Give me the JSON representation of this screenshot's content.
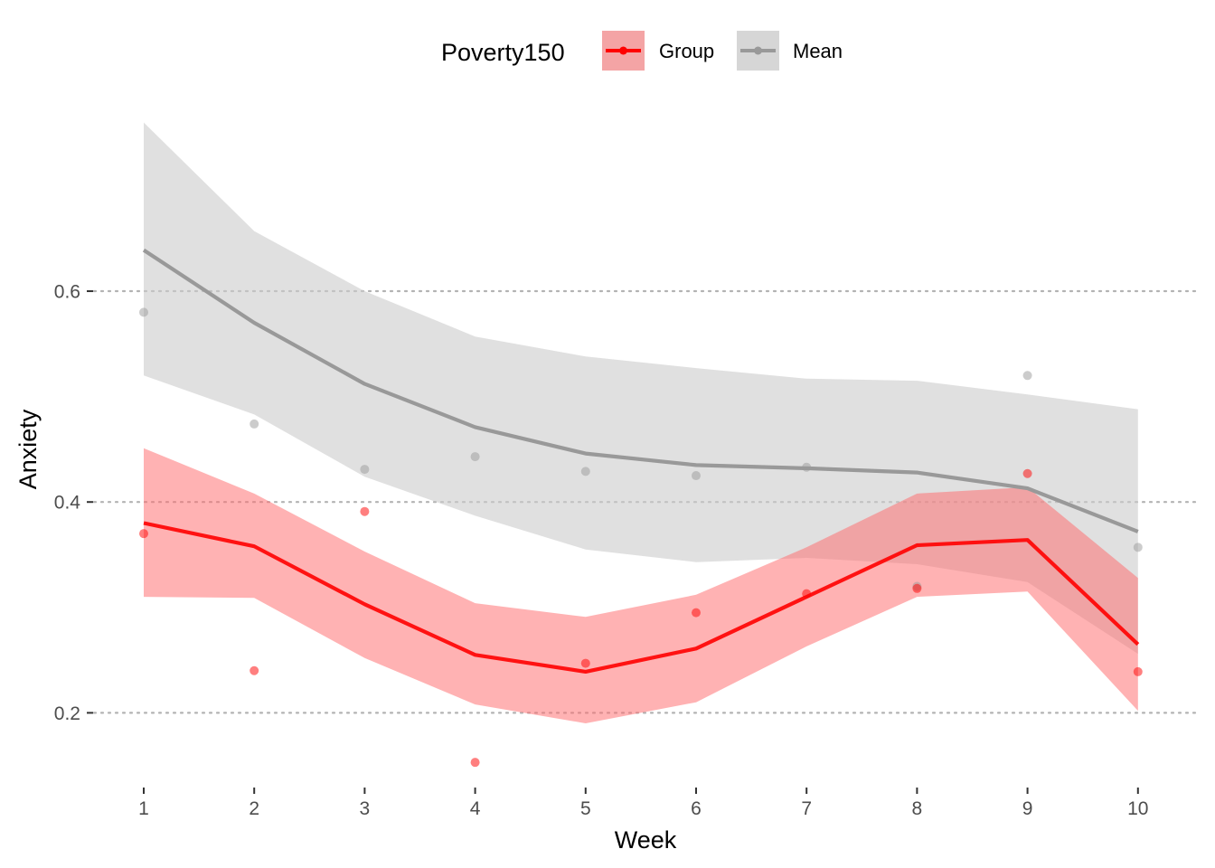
{
  "chart_data": {
    "type": "line",
    "xlabel": "Week",
    "ylabel": "Anxiety",
    "x": [
      1,
      2,
      3,
      4,
      5,
      6,
      7,
      8,
      9,
      10
    ],
    "x_tick_labels": [
      "1",
      "2",
      "3",
      "4",
      "5",
      "6",
      "7",
      "8",
      "9",
      "10"
    ],
    "y_ticks": [
      0.2,
      0.4,
      0.6
    ],
    "y_tick_labels": [
      "0.2",
      "0.4",
      "0.6"
    ],
    "xlim": [
      0.55,
      10.55
    ],
    "ylim": [
      0.13,
      0.775
    ],
    "grid": "horizontal-dotted",
    "legend": {
      "title": "Poverty150",
      "placement": "top",
      "entries": [
        "Group",
        "Mean"
      ]
    },
    "series": [
      {
        "name": "Group",
        "color": "#ff0000",
        "fill_color": "#ff6b6e",
        "line": [
          0.38,
          0.358,
          0.303,
          0.255,
          0.239,
          0.261,
          0.31,
          0.359,
          0.364,
          0.265
        ],
        "ci_lower": [
          0.31,
          0.309,
          0.252,
          0.208,
          0.19,
          0.21,
          0.263,
          0.31,
          0.315,
          0.202
        ],
        "ci_upper": [
          0.451,
          0.408,
          0.353,
          0.304,
          0.291,
          0.312,
          0.357,
          0.408,
          0.414,
          0.328
        ],
        "points": [
          0.37,
          0.24,
          0.391,
          0.153,
          0.247,
          0.295,
          0.313,
          0.318,
          0.427,
          0.239
        ]
      },
      {
        "name": "Mean",
        "color": "#999999",
        "fill_color": "#cccccc",
        "line": [
          0.639,
          0.57,
          0.512,
          0.471,
          0.446,
          0.435,
          0.432,
          0.428,
          0.413,
          0.372
        ],
        "ci_lower": [
          0.52,
          0.483,
          0.424,
          0.387,
          0.355,
          0.343,
          0.347,
          0.341,
          0.324,
          0.256
        ],
        "ci_upper": [
          0.76,
          0.657,
          0.6,
          0.557,
          0.538,
          0.527,
          0.517,
          0.515,
          0.502,
          0.488
        ],
        "points": [
          0.58,
          0.474,
          0.431,
          0.443,
          0.429,
          0.425,
          0.433,
          0.32,
          0.52,
          0.357
        ]
      }
    ]
  }
}
